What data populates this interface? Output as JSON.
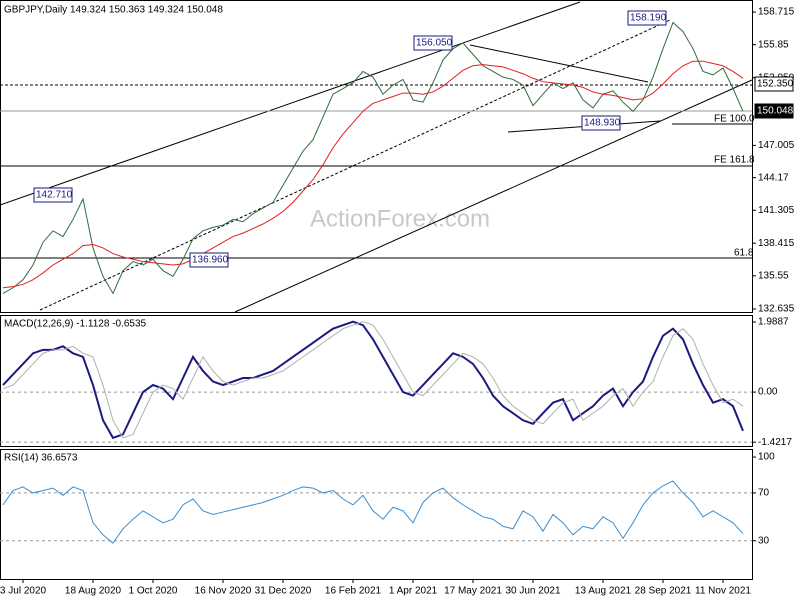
{
  "chart_data": [
    {
      "type": "line",
      "title": "GBPJPY,Daily 149.324 150.363 149.324 150.048",
      "watermark": "ActionForex.com",
      "ylim": [
        132.37,
        159.6
      ],
      "yticks": [
        158.715,
        155.85,
        {
          "value": 152.95,
          "label": "152.950"
        },
        147.005,
        144.17,
        141.305,
        138.415,
        135.55,
        132.635
      ],
      "annotations": [
        "158.190",
        "156.050",
        "142.710",
        "136.960",
        "148.930",
        "FE 100.0",
        "FE 161.8",
        "61.8",
        "152.350",
        "150.048"
      ],
      "series": [
        {
          "color": "#2e6b3a",
          "values": [
            134.0,
            134.5,
            135.2,
            136.5,
            138.5,
            139.5,
            139.0,
            140.5,
            142.3,
            138.0,
            135.5,
            134.0,
            136.0,
            136.8,
            136.5,
            137.0,
            136.0,
            135.5,
            137.0,
            138.8,
            139.5,
            139.8,
            140.0,
            140.5,
            140.3,
            141.0,
            141.5,
            142.0,
            143.5,
            145.0,
            146.5,
            147.5,
            149.5,
            151.5,
            152.0,
            152.5,
            153.5,
            153.0,
            151.5,
            152.3,
            152.8,
            151.0,
            150.8,
            152.5,
            154.5,
            155.5,
            156.0,
            155.0,
            154.0,
            153.5,
            153.0,
            152.8,
            152.3,
            150.5,
            151.5,
            152.5,
            152.0,
            152.5,
            151.0,
            150.3,
            151.5,
            151.8,
            150.8,
            150.0,
            151.0,
            153.0,
            155.5,
            157.8,
            157.0,
            155.5,
            153.5,
            153.2,
            153.8,
            152.0,
            150.0
          ]
        },
        {
          "color": "#e02020",
          "values": [
            134.5,
            134.6,
            134.8,
            135.2,
            135.8,
            136.5,
            137.0,
            137.5,
            138.2,
            138.3,
            138.0,
            137.5,
            137.2,
            137.0,
            136.8,
            136.7,
            136.6,
            136.5,
            136.6,
            137.0,
            137.5,
            138.0,
            138.5,
            139.0,
            139.3,
            139.7,
            140.1,
            140.6,
            141.2,
            142.0,
            143.0,
            144.0,
            145.3,
            146.8,
            148.0,
            149.0,
            150.0,
            150.7,
            151.0,
            151.3,
            151.6,
            151.6,
            151.5,
            151.7,
            152.2,
            152.9,
            153.6,
            154.0,
            154.1,
            154.0,
            153.9,
            153.6,
            153.3,
            152.9,
            152.6,
            152.5,
            152.4,
            152.3,
            152.1,
            151.7,
            151.5,
            151.4,
            151.2,
            151.0,
            151.1,
            151.6,
            152.4,
            153.3,
            154.0,
            154.4,
            154.4,
            154.2,
            154.0,
            153.5,
            152.9
          ]
        }
      ]
    },
    {
      "type": "line",
      "title": "MACD(12,26,9) -1.1128 -0.6535",
      "ylim": [
        -1.53,
        2.16
      ],
      "yticks": [
        1.9887,
        {
          "value": 0,
          "label": "0.00"
        },
        -1.4217
      ],
      "series": [
        {
          "color": "#1a1a80",
          "values": [
            0.2,
            0.5,
            0.8,
            1.1,
            1.2,
            1.2,
            1.3,
            1.1,
            1.0,
            0.2,
            -0.8,
            -1.3,
            -1.2,
            -0.6,
            0.0,
            0.2,
            0.1,
            -0.2,
            0.4,
            1.0,
            0.6,
            0.3,
            0.2,
            0.3,
            0.4,
            0.4,
            0.5,
            0.6,
            0.8,
            1.0,
            1.2,
            1.4,
            1.6,
            1.8,
            1.9,
            2.0,
            1.9,
            1.5,
            1.0,
            0.5,
            0.0,
            -0.1,
            0.2,
            0.5,
            0.8,
            1.1,
            1.0,
            0.8,
            0.4,
            -0.1,
            -0.4,
            -0.6,
            -0.8,
            -0.9,
            -0.6,
            -0.3,
            -0.2,
            -0.8,
            -0.6,
            -0.4,
            -0.1,
            0.1,
            -0.4,
            0.0,
            0.3,
            1.0,
            1.6,
            1.8,
            1.5,
            0.8,
            0.2,
            -0.3,
            -0.2,
            -0.4,
            -1.1
          ]
        },
        {
          "color": "#b0b0b0",
          "values": [
            0.1,
            0.2,
            0.5,
            0.8,
            1.1,
            1.2,
            1.2,
            1.3,
            1.1,
            1.0,
            0.2,
            -0.8,
            -1.3,
            -1.2,
            -0.6,
            0.0,
            0.2,
            0.1,
            -0.2,
            0.4,
            1.0,
            0.6,
            0.3,
            0.2,
            0.3,
            0.4,
            0.4,
            0.5,
            0.6,
            0.8,
            1.0,
            1.2,
            1.4,
            1.6,
            1.8,
            1.9,
            2.0,
            1.9,
            1.5,
            1.0,
            0.5,
            0.0,
            -0.1,
            0.2,
            0.5,
            0.8,
            1.1,
            1.0,
            0.8,
            0.4,
            -0.1,
            -0.4,
            -0.6,
            -0.8,
            -0.9,
            -0.6,
            -0.3,
            -0.2,
            -0.8,
            -0.6,
            -0.4,
            -0.1,
            0.1,
            -0.4,
            0.0,
            0.3,
            1.0,
            1.6,
            1.8,
            1.5,
            0.8,
            0.2,
            -0.3,
            -0.2,
            -0.4
          ]
        }
      ]
    },
    {
      "type": "line",
      "title": "RSI(14) 36.6573",
      "ylim": [
        -2,
        105.9
      ],
      "yticks": [
        100,
        70,
        30
      ],
      "categories": [
        null,
        null,
        "3 Jul 2020",
        null,
        null,
        null,
        null,
        null,
        null,
        "18 Aug 2020",
        null,
        null,
        null,
        null,
        null,
        "1 Oct 2020",
        null,
        null,
        null,
        null,
        null,
        null,
        "16 Nov 2020",
        null,
        null,
        null,
        null,
        null,
        "31 Dec 2020",
        null,
        null,
        null,
        null,
        null,
        null,
        "16 Feb 2021",
        null,
        null,
        null,
        null,
        null,
        "1 Apr 2021",
        null,
        null,
        null,
        null,
        null,
        "17 May 2021",
        null,
        null,
        null,
        null,
        null,
        "30 Jun 2021",
        null,
        null,
        null,
        null,
        null,
        null,
        "13 Aug 2021",
        null,
        null,
        null,
        null,
        null,
        "28 Sep 2021",
        null,
        null,
        null,
        null,
        null,
        "11 Nov 2021",
        null,
        null
      ],
      "series": [
        {
          "color": "#3a8fd0",
          "values": [
            60,
            72,
            75,
            70,
            72,
            74,
            68,
            75,
            72,
            45,
            35,
            28,
            40,
            48,
            55,
            50,
            45,
            48,
            60,
            65,
            55,
            52,
            54,
            56,
            58,
            60,
            62,
            65,
            68,
            72,
            75,
            74,
            70,
            72,
            65,
            60,
            68,
            55,
            48,
            58,
            55,
            45,
            62,
            70,
            74,
            66,
            60,
            55,
            50,
            48,
            42,
            40,
            55,
            50,
            38,
            52,
            45,
            35,
            42,
            40,
            50,
            45,
            32,
            45,
            60,
            70,
            76,
            80,
            70,
            62,
            50,
            55,
            50,
            45,
            36
          ]
        }
      ]
    }
  ]
}
